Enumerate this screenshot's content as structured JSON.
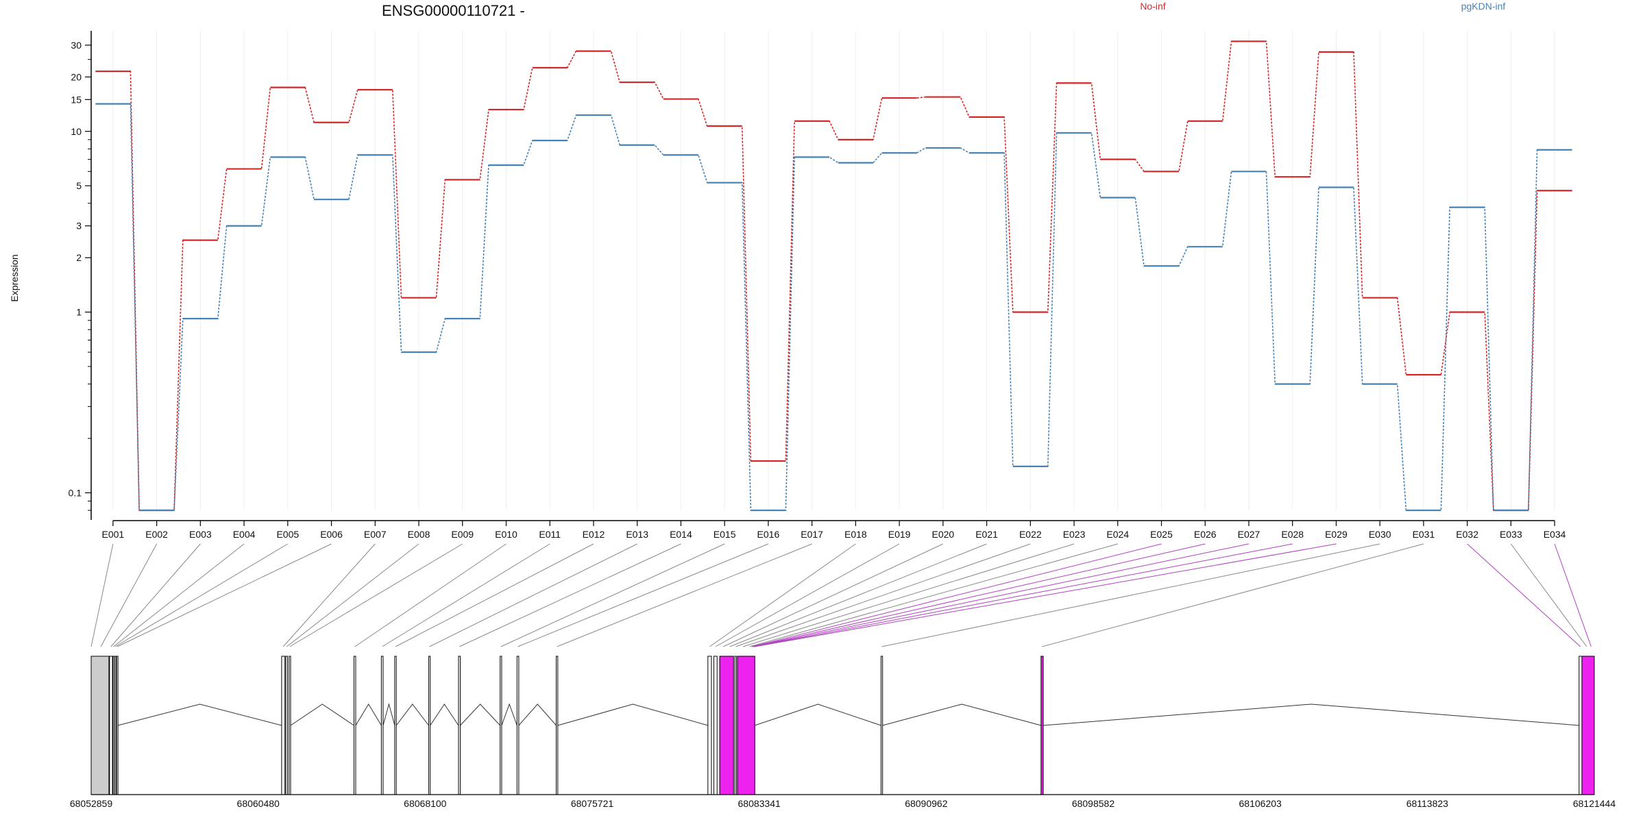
{
  "chart_data": {
    "type": "line",
    "title": "ENSG00000110721 -",
    "ylabel": "Expression",
    "yscale": "log",
    "ylim": [
      0.08,
      36
    ],
    "yticks": [
      0.1,
      1,
      2,
      3,
      5,
      10,
      15,
      20,
      30
    ],
    "legend_placement": "top",
    "grid": "vertical",
    "categories": [
      "E001",
      "E002",
      "E003",
      "E004",
      "E005",
      "E006",
      "E007",
      "E008",
      "E009",
      "E010",
      "E011",
      "E012",
      "E013",
      "E014",
      "E015",
      "E016",
      "E017",
      "E018",
      "E019",
      "E020",
      "E021",
      "E022",
      "E023",
      "E024",
      "E025",
      "E026",
      "E027",
      "E028",
      "E029",
      "E030",
      "E031",
      "E032",
      "E033",
      "E034"
    ],
    "series": [
      {
        "name": "No-inf",
        "color": "#d62728",
        "values": [
          21.5,
          0.08,
          2.5,
          6.2,
          17.5,
          11.2,
          17.0,
          1.2,
          5.4,
          13.2,
          22.5,
          27.8,
          18.7,
          15.1,
          10.7,
          0.15,
          11.4,
          9.0,
          15.3,
          15.5,
          12.0,
          1.0,
          18.5,
          7.0,
          6.0,
          11.4,
          31.5,
          5.6,
          27.5,
          1.2,
          0.45,
          1.0,
          0.08,
          4.7
        ],
        "style": "dashed-connector"
      },
      {
        "name": "pgKDN-inf",
        "color": "#4682b4",
        "values": [
          14.2,
          0.08,
          0.92,
          3.0,
          7.2,
          4.2,
          7.4,
          0.6,
          0.92,
          6.5,
          8.9,
          12.3,
          8.4,
          7.4,
          5.2,
          0.08,
          7.2,
          6.7,
          7.6,
          8.1,
          7.6,
          0.14,
          9.8,
          4.3,
          1.8,
          2.3,
          6.0,
          0.4,
          4.9,
          0.4,
          0.08,
          3.8,
          0.08,
          7.9
        ],
        "style": "dashed-connector"
      }
    ]
  },
  "gene_model": {
    "coordinates": [
      "68052859",
      "68060480",
      "68068100",
      "68075721",
      "68083341",
      "68090962",
      "68098582",
      "68106203",
      "68113823",
      "68121444"
    ],
    "range": [
      68052859,
      68121444
    ],
    "colors": {
      "exon_gray": "#cccccc",
      "exon_magenta": "#ee22ee",
      "connector_gray": "#888888",
      "connector_magenta": "#b040c0"
    },
    "magenta_exons": [
      "E025",
      "E026",
      "E027",
      "E028",
      "E029",
      "E032",
      "E034"
    ]
  }
}
